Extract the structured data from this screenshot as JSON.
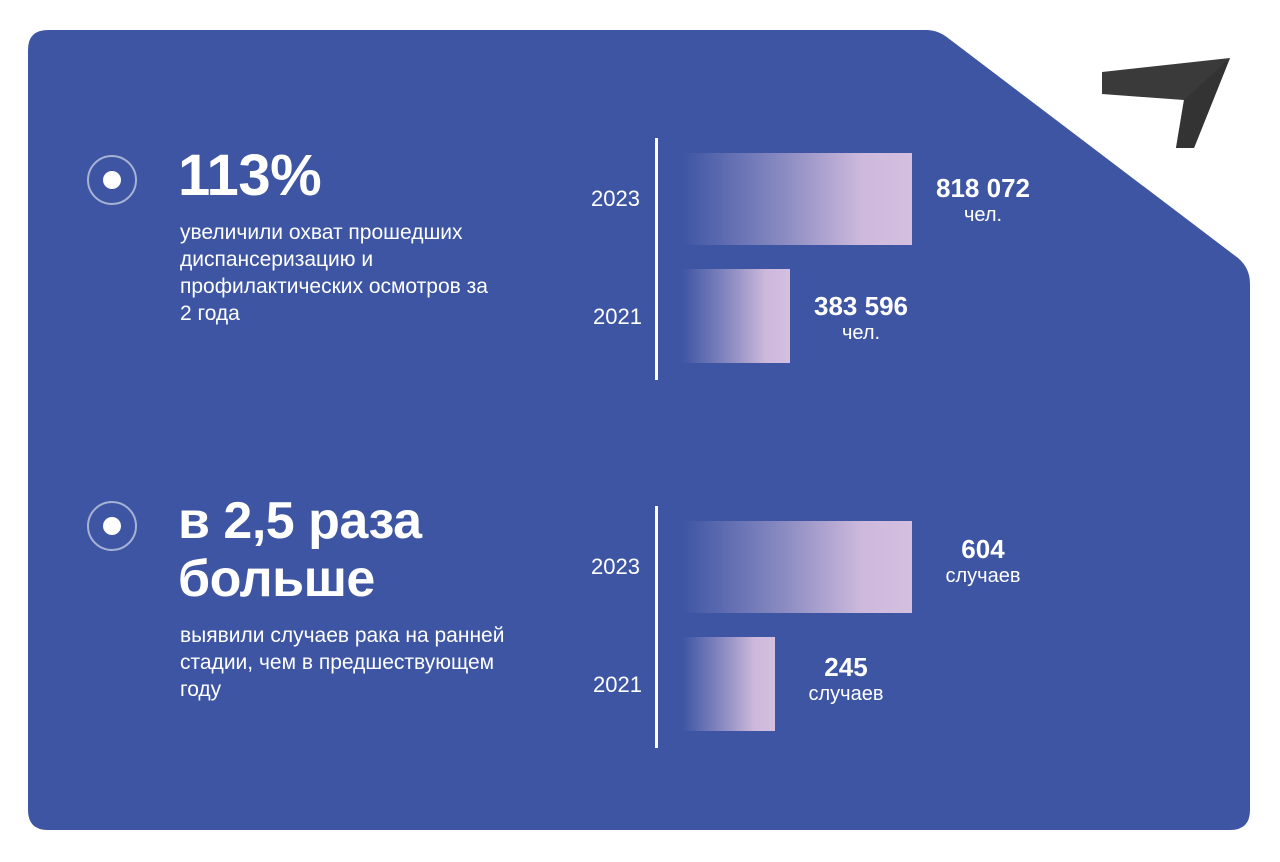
{
  "colors": {
    "card": "#3d55a3",
    "bar": "#cdb9dc",
    "text": "#ffffff",
    "logo": "#3a3a3a"
  },
  "icons": {
    "logo": "paper-plane-logo",
    "bullet": "radio-bullet-icon"
  },
  "section1": {
    "headline": "113%",
    "description": "увеличили охват прошедших диспансеризацию и профилактических осмотров за 2 года"
  },
  "section2": {
    "headline": "в 2,5 раза больше",
    "description": "выявили случаев рака на ранней стадии, чем в предшествующем году"
  },
  "chart_data": [
    {
      "type": "bar",
      "orientation": "horizontal",
      "categories": [
        "2023",
        "2021"
      ],
      "values": [
        818072,
        383596
      ],
      "value_labels": [
        "818 072",
        "383 596"
      ],
      "unit": "чел.",
      "title": "",
      "xlabel": "",
      "ylabel": "",
      "grid": false
    },
    {
      "type": "bar",
      "orientation": "horizontal",
      "categories": [
        "2023",
        "2021"
      ],
      "values": [
        604,
        245
      ],
      "value_labels": [
        "604",
        "245"
      ],
      "unit": "случаев",
      "title": "",
      "xlabel": "",
      "ylabel": "",
      "grid": false
    }
  ]
}
